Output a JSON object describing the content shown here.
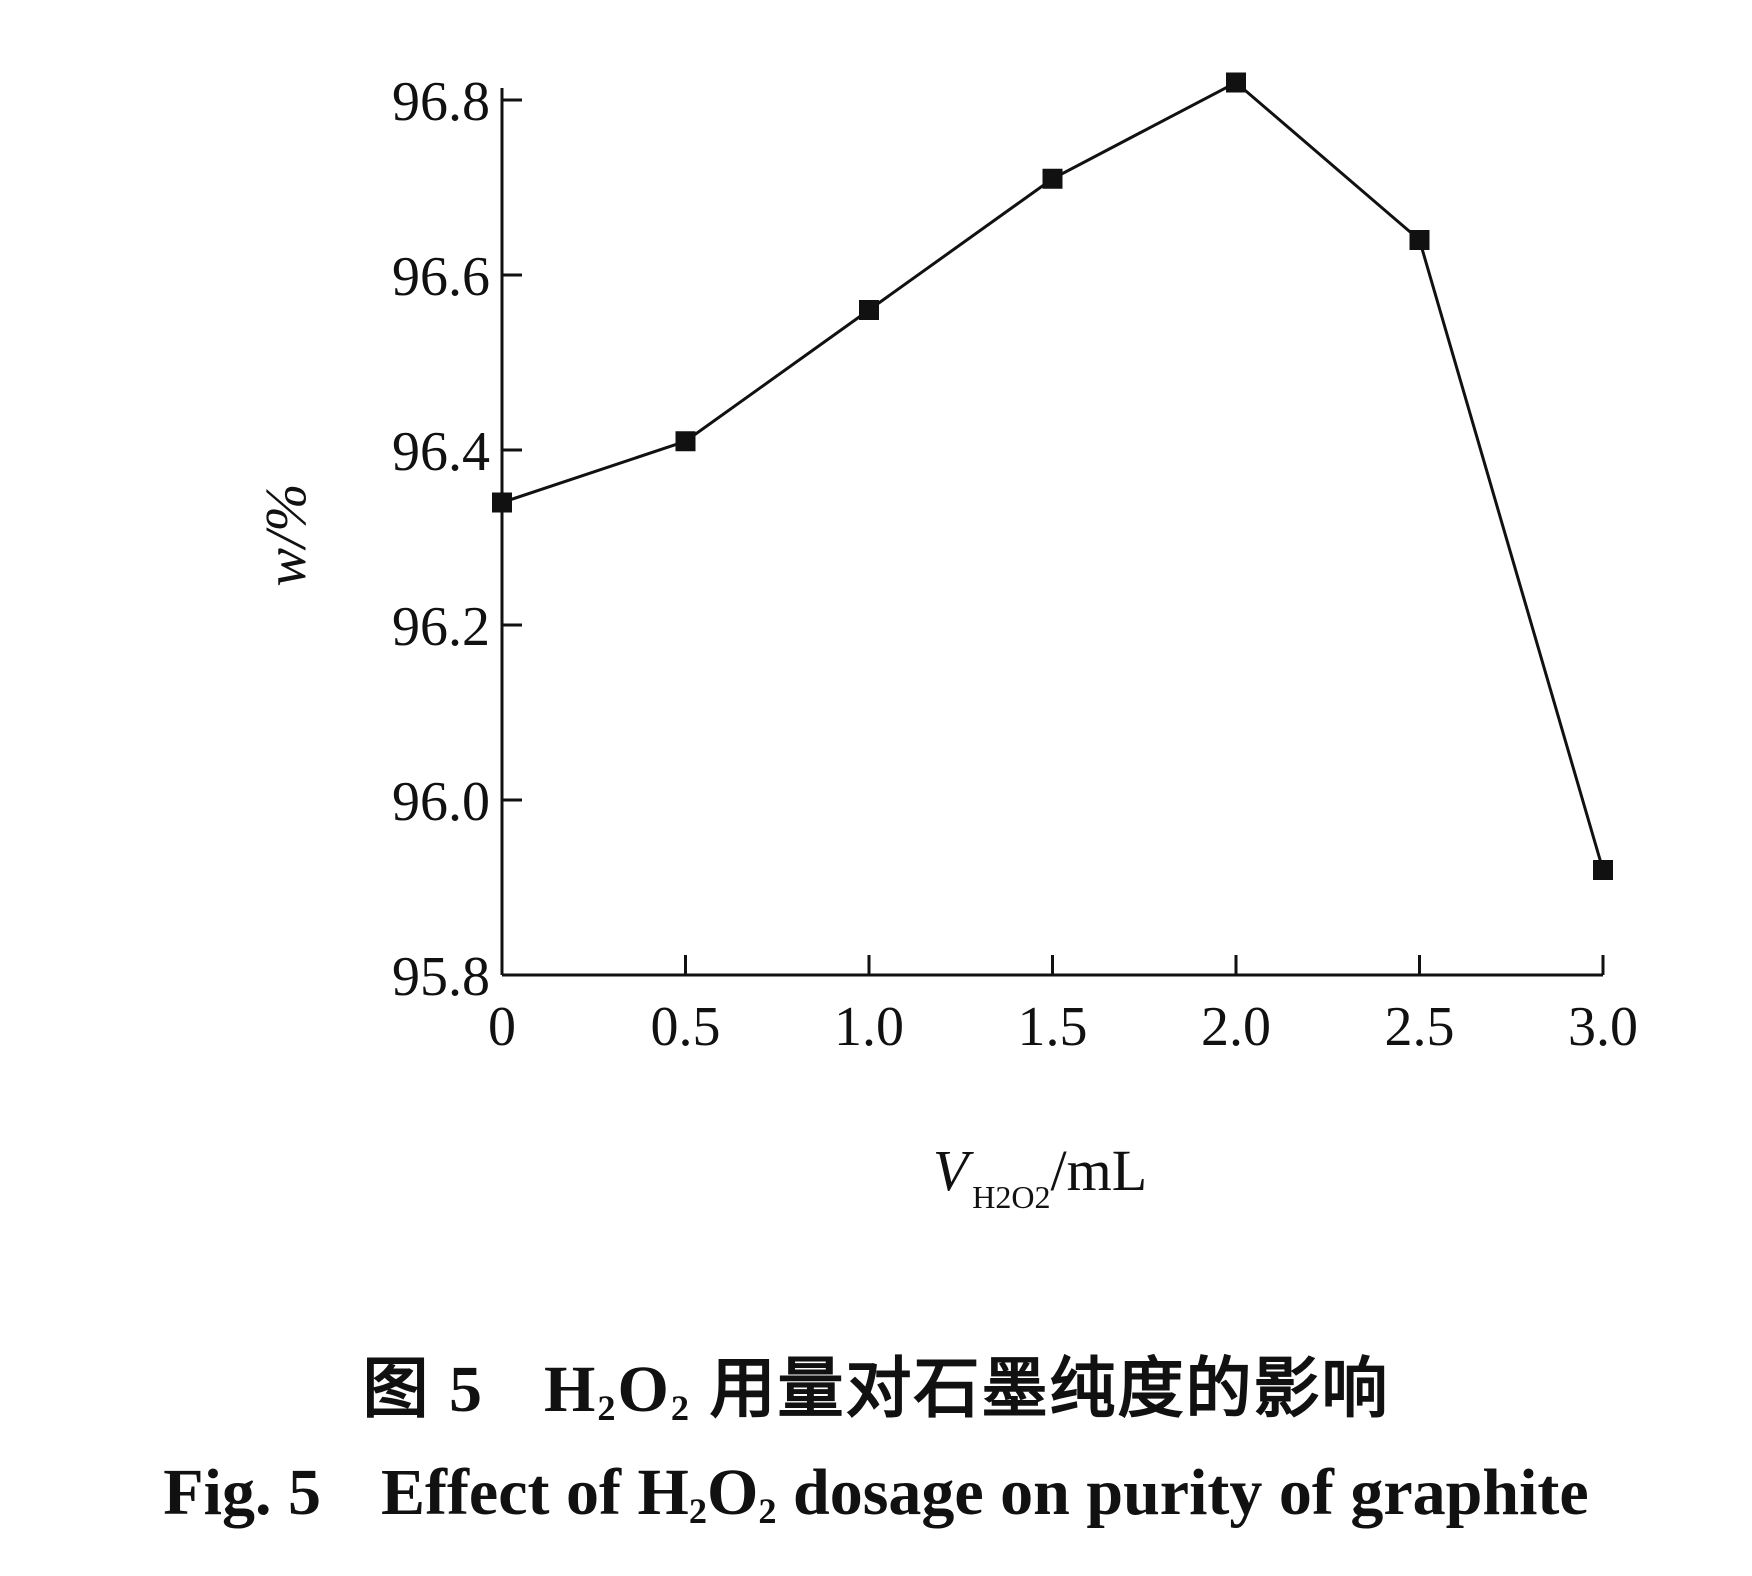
{
  "chart_data": {
    "type": "line",
    "x": [
      0,
      0.5,
      1.0,
      1.5,
      2.0,
      2.5,
      3.0
    ],
    "series": [
      {
        "values": [
          96.34,
          96.41,
          96.56,
          96.71,
          96.82,
          96.64,
          95.92
        ]
      }
    ],
    "xlim": [
      0,
      3.0
    ],
    "ylim": [
      95.8,
      96.8
    ],
    "xticks": [
      "0",
      "0.5",
      "1.0",
      "1.5",
      "2.0",
      "2.5",
      "3.0"
    ],
    "yticks": [
      "95.8",
      "96.0",
      "96.2",
      "96.4",
      "96.6",
      "96.8"
    ],
    "xlabel": {
      "main": "V",
      "sub": "H2O2",
      "unit": "/mL"
    },
    "ylabel": "w/%",
    "marker": "square",
    "line_color": "#111111",
    "grid": false
  },
  "caption": {
    "cn_fig": "图 5",
    "cn_h": "H",
    "cn_h_sub": "2",
    "cn_o": "O",
    "cn_o_sub": "2",
    "cn_rest": "用量对石墨纯度的影响",
    "en_fig": "Fig. 5",
    "en_pre": "Effect of H",
    "en_sub1": "2",
    "en_mid": "O",
    "en_sub2": "2",
    "en_post": " dosage on purity of graphite"
  }
}
